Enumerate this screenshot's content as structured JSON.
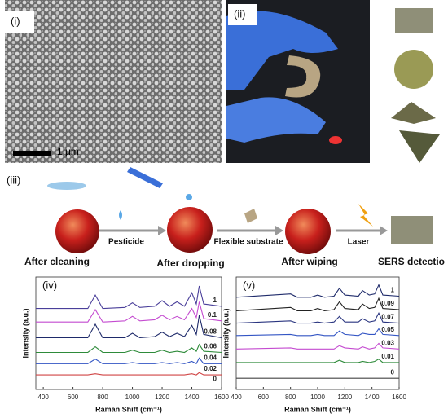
{
  "panels": {
    "i": {
      "label": "(i)",
      "scale_bar": "1 μm"
    },
    "ii": {
      "label": "(ii)"
    },
    "iii": {
      "label": "(iii)",
      "steps": [
        "After cleaning",
        "After dropping",
        "After wiping",
        "SERS detectio"
      ],
      "arrows": [
        "Pesticide",
        "Flexible substrate",
        "Laser"
      ]
    }
  },
  "chart_data": [
    {
      "type": "line",
      "label": "(iv)",
      "x_label": "Raman Shift (cm⁻¹)",
      "y_label": "Intensity (a.u.)",
      "xlim": [
        350,
        1600
      ],
      "xticks": [
        400,
        600,
        800,
        1000,
        1200,
        1400,
        1600
      ],
      "ylim": [
        0,
        10
      ],
      "x": [
        350,
        700,
        750,
        800,
        950,
        1000,
        1050,
        1150,
        1200,
        1250,
        1300,
        1350,
        1400,
        1430,
        1450,
        1480,
        1600
      ],
      "series": [
        {
          "name": "1",
          "color": "#4a3f9a",
          "values": [
            7.2,
            7.2,
            8.4,
            7.2,
            7.3,
            7.7,
            7.3,
            7.4,
            7.9,
            7.4,
            7.8,
            7.4,
            8.6,
            7.6,
            9.2,
            7.6,
            7.4
          ]
        },
        {
          "name": "0.1",
          "color": "#c44bd0",
          "values": [
            6.0,
            6.0,
            7.1,
            6.0,
            6.1,
            6.5,
            6.1,
            6.2,
            6.6,
            6.2,
            6.5,
            6.2,
            7.2,
            6.4,
            7.8,
            6.3,
            6.1
          ]
        },
        {
          "name": "0.08",
          "color": "#1e2a6a",
          "values": [
            4.6,
            4.6,
            5.8,
            4.6,
            4.6,
            5.0,
            4.6,
            4.7,
            5.1,
            4.7,
            5.0,
            4.7,
            5.7,
            4.9,
            6.6,
            4.9,
            4.6
          ]
        },
        {
          "name": "0.06",
          "color": "#2e8b3a",
          "values": [
            3.3,
            3.3,
            3.8,
            3.3,
            3.3,
            3.5,
            3.3,
            3.3,
            3.5,
            3.3,
            3.4,
            3.3,
            3.7,
            3.4,
            4.0,
            3.4,
            3.3
          ]
        },
        {
          "name": "0.04",
          "color": "#3355c4",
          "values": [
            2.3,
            2.3,
            2.7,
            2.3,
            2.3,
            2.4,
            2.3,
            2.3,
            2.4,
            2.3,
            2.4,
            2.3,
            2.5,
            2.3,
            2.8,
            2.3,
            2.3
          ]
        },
        {
          "name": "0.02",
          "color": "#d04545",
          "values": [
            1.3,
            1.3,
            1.4,
            1.3,
            1.3,
            1.3,
            1.3,
            1.3,
            1.3,
            1.3,
            1.3,
            1.3,
            1.4,
            1.3,
            1.5,
            1.3,
            1.3
          ]
        },
        {
          "name": "0",
          "color": "#888888",
          "values": [
            0.4,
            0.4,
            0.4,
            0.4,
            0.4,
            0.4,
            0.4,
            0.4,
            0.4,
            0.4,
            0.4,
            0.4,
            0.4,
            0.4,
            0.4,
            0.4,
            0.4
          ]
        }
      ]
    },
    {
      "type": "line",
      "label": "(v)",
      "x_label": "Raman Shift (cm⁻¹)",
      "y_label": "Intensity (a.u.)",
      "xlim": [
        400,
        1600
      ],
      "xticks": [
        400,
        600,
        800,
        1000,
        1200,
        1400,
        1600
      ],
      "ylim": [
        0,
        10
      ],
      "x": [
        400,
        800,
        850,
        950,
        1000,
        1050,
        1120,
        1160,
        1200,
        1300,
        1330,
        1380,
        1420,
        1450,
        1480,
        1600
      ],
      "series": [
        {
          "name": "1",
          "color": "#1e2a6a",
          "values": [
            8.2,
            8.5,
            8.2,
            8.2,
            8.4,
            8.2,
            8.3,
            9.0,
            8.4,
            8.3,
            8.8,
            8.4,
            8.5,
            9.3,
            8.4,
            8.3
          ]
        },
        {
          "name": "0.09",
          "color": "#222222",
          "values": [
            7.0,
            7.3,
            7.0,
            7.0,
            7.2,
            7.0,
            7.1,
            7.8,
            7.2,
            7.1,
            7.6,
            7.2,
            7.3,
            8.1,
            7.2,
            7.1
          ]
        },
        {
          "name": "0.07",
          "color": "#2a3580",
          "values": [
            5.9,
            6.1,
            5.9,
            5.9,
            6.0,
            5.9,
            6.0,
            6.5,
            6.0,
            6.0,
            6.3,
            6.0,
            6.1,
            6.8,
            6.0,
            5.9
          ]
        },
        {
          "name": "0.05",
          "color": "#3355c4",
          "values": [
            4.8,
            4.9,
            4.8,
            4.8,
            4.9,
            4.8,
            4.8,
            5.2,
            4.9,
            4.8,
            5.0,
            4.9,
            4.9,
            5.4,
            4.9,
            4.8
          ]
        },
        {
          "name": "0.03",
          "color": "#c44bd0",
          "values": [
            3.6,
            3.7,
            3.6,
            3.6,
            3.6,
            3.6,
            3.6,
            3.9,
            3.7,
            3.6,
            3.8,
            3.6,
            3.7,
            4.1,
            3.7,
            3.6
          ]
        },
        {
          "name": "0.01",
          "color": "#2e8b3a",
          "values": [
            2.4,
            2.4,
            2.4,
            2.4,
            2.4,
            2.4,
            2.4,
            2.6,
            2.4,
            2.4,
            2.5,
            2.4,
            2.5,
            2.7,
            2.4,
            2.4
          ]
        },
        {
          "name": "0",
          "color": "#444444",
          "values": [
            1.0,
            1.0,
            1.0,
            1.0,
            1.0,
            1.0,
            1.0,
            1.0,
            1.0,
            1.0,
            1.0,
            1.0,
            1.0,
            1.0,
            1.0,
            1.0
          ]
        }
      ]
    }
  ]
}
